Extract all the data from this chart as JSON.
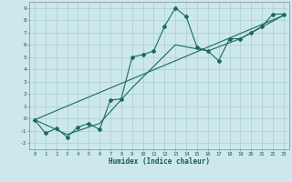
{
  "xlabel": "Humidex (Indice chaleur)",
  "xlim": [
    -0.5,
    23.5
  ],
  "ylim": [
    -2.5,
    9.5
  ],
  "background_color": "#cce8ec",
  "grid_color": "#aacdd4",
  "line_color": "#1a6b5c",
  "line1_x": [
    0,
    1,
    2,
    3,
    4,
    5,
    6,
    7,
    8,
    9,
    10,
    11,
    12,
    13,
    14,
    15,
    16,
    17,
    18,
    19,
    20,
    21,
    22,
    23
  ],
  "line1_y": [
    -0.1,
    -1.2,
    -0.8,
    -1.5,
    -0.7,
    -0.4,
    -0.9,
    1.5,
    1.6,
    5.0,
    5.2,
    5.5,
    7.5,
    9.0,
    8.3,
    5.8,
    5.5,
    4.7,
    6.5,
    6.5,
    7.0,
    7.5,
    8.5,
    8.5
  ],
  "line2_x": [
    0,
    3,
    6,
    9,
    13,
    16,
    19,
    23
  ],
  "line2_y": [
    -0.1,
    -1.3,
    -0.4,
    2.5,
    6.0,
    5.5,
    6.5,
    8.4
  ],
  "line3_x": [
    0,
    23
  ],
  "line3_y": [
    -0.1,
    8.4
  ]
}
